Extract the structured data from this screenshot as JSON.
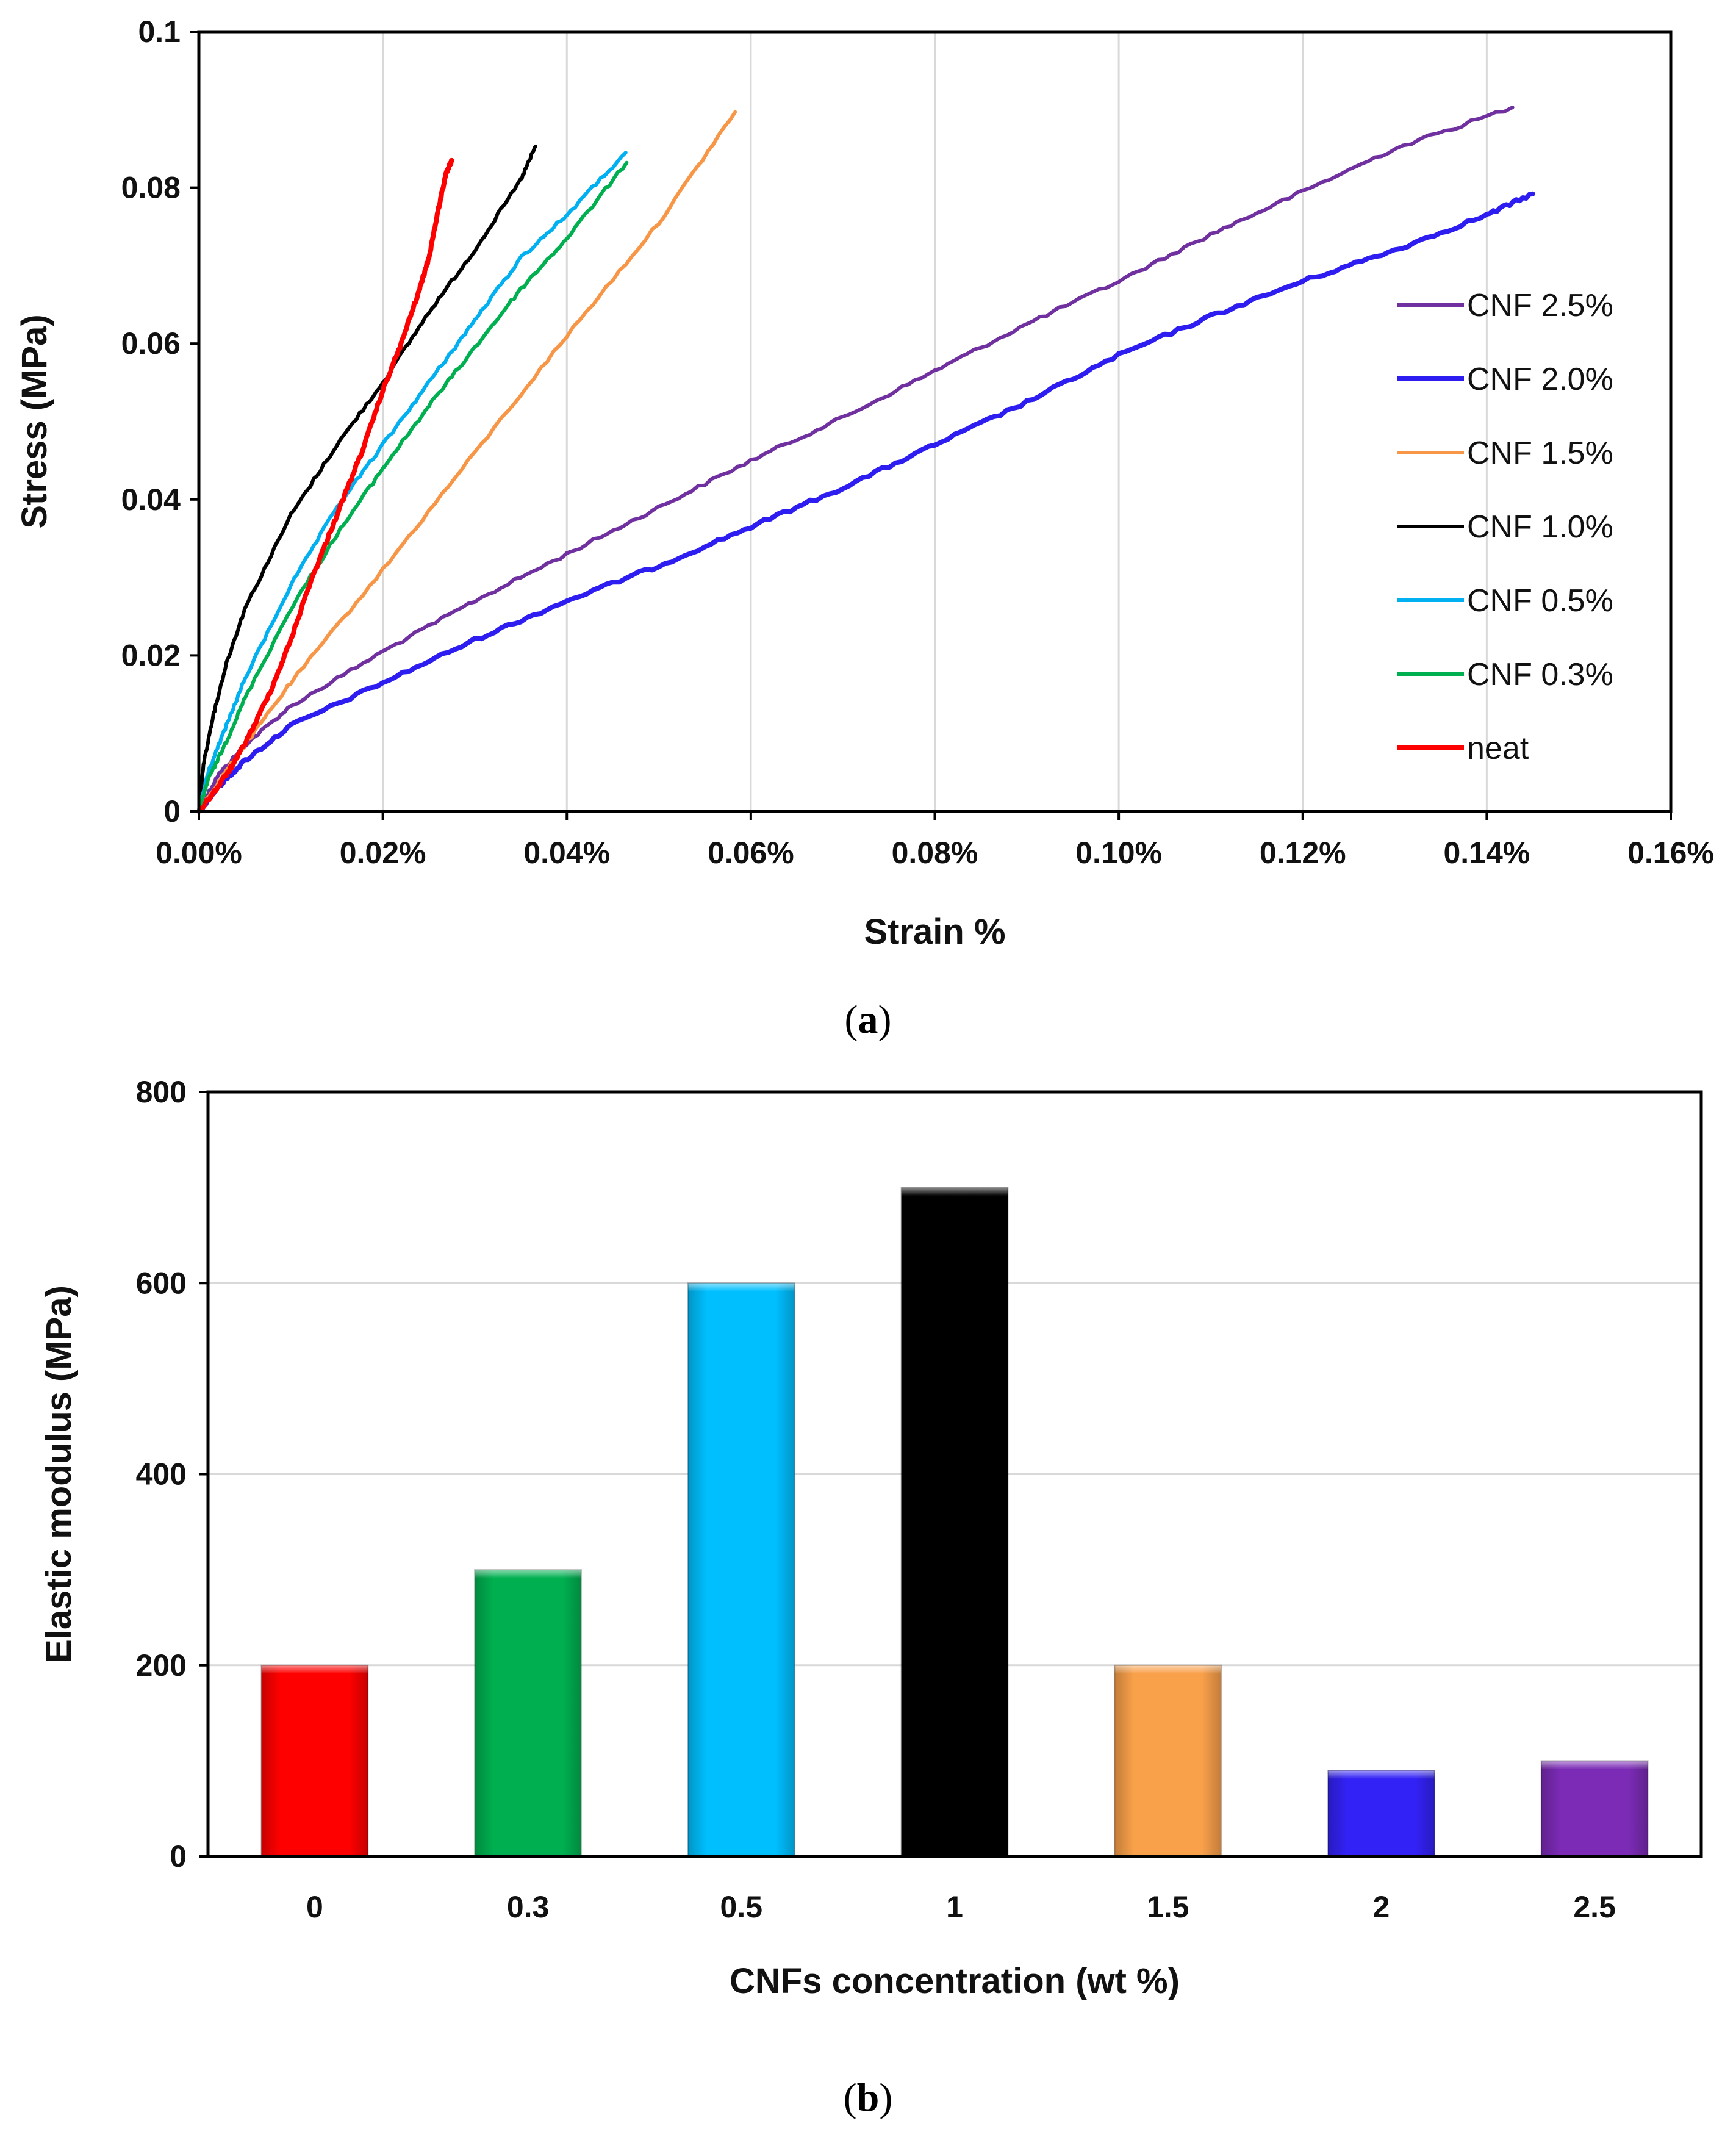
{
  "panels": [
    {
      "label_open": "(",
      "label_letter": "a",
      "label_close": ")"
    },
    {
      "label_open": "(",
      "label_letter": "b",
      "label_close": ")"
    }
  ],
  "chart_data": [
    {
      "type": "line",
      "xlabel": "Strain %",
      "ylabel": "Stress (MPa)",
      "xlim": [
        0,
        0.16
      ],
      "ylim": [
        0,
        0.1
      ],
      "x_ticks": [
        0,
        0.02,
        0.04,
        0.06,
        0.08,
        0.1,
        0.12,
        0.14,
        0.16
      ],
      "x_tick_labels": [
        "0.00%",
        "0.02%",
        "0.04%",
        "0.06%",
        "0.08%",
        "0.10%",
        "0.12%",
        "0.14%",
        "0.16%"
      ],
      "y_ticks": [
        0,
        0.02,
        0.04,
        0.06,
        0.08,
        0.1
      ],
      "y_tick_labels": [
        "0",
        "0.02",
        "0.04",
        "0.06",
        "0.08",
        "0.1"
      ],
      "grid": "vertical",
      "legend_position": "right",
      "series": [
        {
          "name": "CNF 2.5%",
          "color": "#7030A0",
          "points": [
            [
              0,
              0
            ],
            [
              0.002,
              0.0045
            ],
            [
              0.005,
              0.0085
            ],
            [
              0.01,
              0.0135
            ],
            [
              0.02,
              0.0205
            ],
            [
              0.03,
              0.027
            ],
            [
              0.04,
              0.033
            ],
            [
              0.05,
              0.039
            ],
            [
              0.06,
              0.045
            ],
            [
              0.07,
              0.0505
            ],
            [
              0.08,
              0.0565
            ],
            [
              0.09,
              0.0625
            ],
            [
              0.1,
              0.068
            ],
            [
              0.11,
              0.074
            ],
            [
              0.12,
              0.0795
            ],
            [
              0.13,
              0.085
            ],
            [
              0.1428,
              0.0903
            ]
          ]
        },
        {
          "name": "CNF 2.0%",
          "color": "#2D1DF0",
          "points": [
            [
              0,
              0
            ],
            [
              0.002,
              0.003
            ],
            [
              0.005,
              0.0065
            ],
            [
              0.01,
              0.011
            ],
            [
              0.02,
              0.0165
            ],
            [
              0.03,
              0.022
            ],
            [
              0.04,
              0.027
            ],
            [
              0.05,
              0.0315
            ],
            [
              0.06,
              0.0365
            ],
            [
              0.07,
              0.0415
            ],
            [
              0.08,
              0.047
            ],
            [
              0.09,
              0.0525
            ],
            [
              0.1,
              0.0585
            ],
            [
              0.11,
              0.0635
            ],
            [
              0.12,
              0.068
            ],
            [
              0.13,
              0.072
            ],
            [
              0.14,
              0.0765
            ],
            [
              0.145,
              0.0792
            ]
          ]
        },
        {
          "name": "CNF 1.5%",
          "color": "#F79646",
          "points": [
            [
              0,
              0
            ],
            [
              0.002,
              0.0035
            ],
            [
              0.005,
              0.0085
            ],
            [
              0.01,
              0.0165
            ],
            [
              0.02,
              0.031
            ],
            [
              0.03,
              0.046
            ],
            [
              0.04,
              0.061
            ],
            [
              0.05,
              0.0755
            ],
            [
              0.0583,
              0.0897
            ]
          ]
        },
        {
          "name": "CNF 1.0%",
          "color": "#000000",
          "points": [
            [
              0,
              0
            ],
            [
              0.0005,
              0.006
            ],
            [
              0.0015,
              0.012
            ],
            [
              0.003,
              0.019
            ],
            [
              0.005,
              0.026
            ],
            [
              0.01,
              0.038
            ],
            [
              0.015,
              0.047
            ],
            [
              0.02,
              0.055
            ],
            [
              0.025,
              0.064
            ],
            [
              0.03,
              0.072
            ],
            [
              0.035,
              0.081
            ],
            [
              0.0366,
              0.0853
            ]
          ]
        },
        {
          "name": "CNF 0.5%",
          "color": "#00B0F0",
          "points": [
            [
              0,
              0
            ],
            [
              0.001,
              0.005
            ],
            [
              0.003,
              0.011
            ],
            [
              0.005,
              0.017
            ],
            [
              0.01,
              0.029
            ],
            [
              0.015,
              0.039
            ],
            [
              0.02,
              0.047
            ],
            [
              0.025,
              0.055
            ],
            [
              0.03,
              0.063
            ],
            [
              0.035,
              0.071
            ],
            [
              0.04,
              0.0765
            ],
            [
              0.0464,
              0.0845
            ]
          ]
        },
        {
          "name": "CNF 0.3%",
          "color": "#00B050",
          "points": [
            [
              0,
              0
            ],
            [
              0.001,
              0.004
            ],
            [
              0.003,
              0.009
            ],
            [
              0.005,
              0.0145
            ],
            [
              0.01,
              0.026
            ],
            [
              0.015,
              0.0355
            ],
            [
              0.02,
              0.044
            ],
            [
              0.025,
              0.052
            ],
            [
              0.03,
              0.0595
            ],
            [
              0.035,
              0.067
            ],
            [
              0.04,
              0.0735
            ],
            [
              0.0465,
              0.0832
            ]
          ]
        },
        {
          "name": "neat",
          "color": "#FF0000",
          "points": [
            [
              0,
              0
            ],
            [
              0.002,
              0.003
            ],
            [
              0.004,
              0.0065
            ],
            [
              0.006,
              0.011
            ],
            [
              0.008,
              0.016
            ],
            [
              0.01,
              0.022
            ],
            [
              0.012,
              0.029
            ],
            [
              0.014,
              0.035
            ],
            [
              0.016,
              0.041
            ],
            [
              0.018,
              0.047
            ],
            [
              0.02,
              0.054
            ],
            [
              0.022,
              0.06
            ],
            [
              0.024,
              0.067
            ],
            [
              0.025,
              0.071
            ],
            [
              0.026,
              0.077
            ],
            [
              0.0268,
              0.0815
            ],
            [
              0.0275,
              0.0835
            ]
          ]
        }
      ]
    },
    {
      "type": "bar",
      "xlabel": "CNFs concentration (wt %)",
      "ylabel": "Elastic modulus (MPa)",
      "ylim": [
        0,
        800
      ],
      "y_ticks": [
        0,
        200,
        400,
        600,
        800
      ],
      "y_tick_labels": [
        "0",
        "200",
        "400",
        "600",
        "800"
      ],
      "grid": "horizontal",
      "categories": [
        "0",
        "0.3",
        "0.5",
        "1",
        "1.5",
        "2",
        "2.5"
      ],
      "values": [
        200,
        300,
        600,
        700,
        200,
        90,
        100
      ],
      "colors": [
        "#FF0000",
        "#00B050",
        "#00BFFF",
        "#000000",
        "#F9A04A",
        "#3322F5",
        "#7B2BB5"
      ]
    }
  ]
}
